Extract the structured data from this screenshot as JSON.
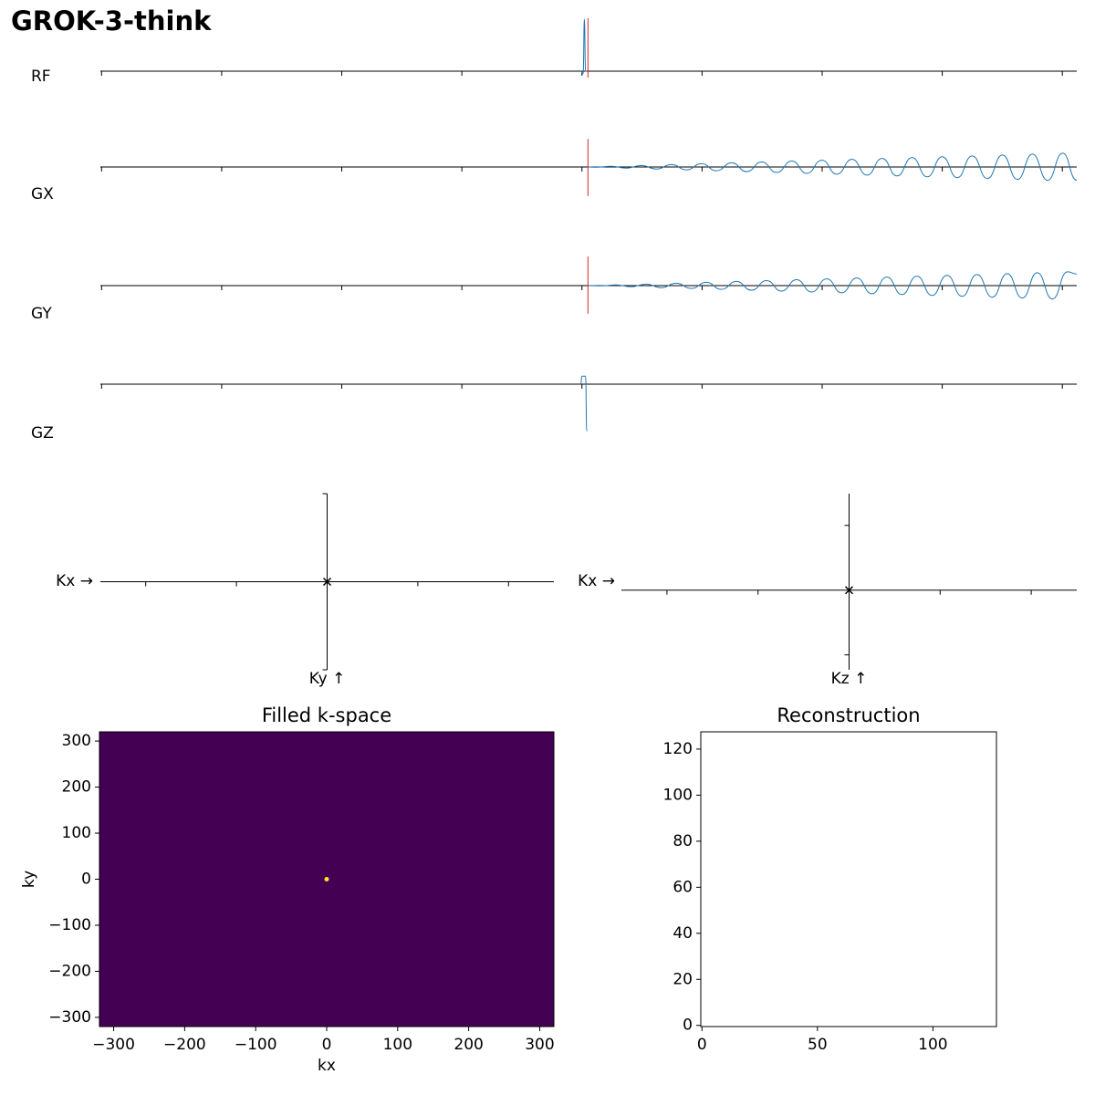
{
  "title": "GROK-3-think",
  "chart_data": [
    {
      "type": "waveform",
      "ylabel": "RF",
      "xlim": [
        -0.01,
        8.12
      ],
      "xticks": [
        0,
        1,
        2,
        3,
        4,
        5,
        6,
        7,
        8
      ],
      "ylim": [
        -1,
        1
      ],
      "series": [
        {
          "color": "#1f77b4",
          "x": [
            3.99,
            4.01,
            4.02,
            4.03,
            4.04
          ],
          "values": [
            0,
            -0.05,
            0.98,
            0,
            0
          ]
        },
        {
          "color": "#d62728",
          "x": [
            4.05,
            4.05
          ],
          "values": [
            1.0,
            -0.12
          ]
        }
      ]
    },
    {
      "type": "waveform",
      "ylabel": "GX",
      "xlim": [
        -0.01,
        8.12
      ],
      "xticks": [
        0,
        1,
        2,
        3,
        4,
        5,
        6,
        7,
        8
      ],
      "ylim": [
        -1,
        1
      ],
      "series": [
        {
          "color": "#1f77b4",
          "x": [
            4.047,
            4.119,
            4.244,
            4.37,
            4.495,
            4.62,
            4.745,
            4.871,
            4.996,
            5.121,
            5.246,
            5.372,
            5.497,
            5.622,
            5.747,
            5.873,
            5.998,
            6.123,
            6.248,
            6.374,
            6.499,
            6.624,
            6.749,
            6.875,
            7.0,
            7.125,
            7.25,
            7.376,
            7.501,
            7.626,
            7.751,
            7.877,
            8.003,
            8.12
          ],
          "values": [
            0,
            -0.005,
            0.013,
            -0.021,
            0.029,
            -0.038,
            0.046,
            -0.054,
            0.062,
            -0.071,
            0.079,
            -0.087,
            0.095,
            -0.103,
            0.112,
            -0.12,
            0.128,
            -0.136,
            0.145,
            -0.153,
            0.161,
            -0.169,
            0.178,
            -0.186,
            0.194,
            -0.202,
            0.21,
            -0.219,
            0.227,
            -0.235,
            0.243,
            -0.252,
            0.26,
            -0.25
          ]
        },
        {
          "color": "#d62728",
          "x": [
            4.05,
            4.05
          ],
          "values": [
            0.53,
            -0.55
          ]
        }
      ]
    },
    {
      "type": "waveform",
      "ylabel": "GY",
      "xlim": [
        -0.01,
        8.12
      ],
      "xticks": [
        0,
        1,
        2,
        3,
        4,
        5,
        6,
        7,
        8
      ],
      "ylim": [
        -1,
        1
      ],
      "series": [
        {
          "color": "#1f77b4",
          "x": [
            4.047,
            4.159,
            4.284,
            4.41,
            4.535,
            4.66,
            4.785,
            4.911,
            5.036,
            5.161,
            5.286,
            5.412,
            5.537,
            5.662,
            5.787,
            5.913,
            6.038,
            6.163,
            6.288,
            6.414,
            6.539,
            6.664,
            6.789,
            6.915,
            7.04,
            7.165,
            7.29,
            7.416,
            7.541,
            7.666,
            7.791,
            7.917,
            8.043,
            8.12
          ],
          "values": [
            0,
            -0.005,
            0.013,
            -0.021,
            0.029,
            -0.038,
            0.046,
            -0.054,
            0.062,
            -0.071,
            0.079,
            -0.087,
            0.095,
            -0.103,
            0.112,
            -0.12,
            0.128,
            -0.136,
            0.145,
            -0.153,
            0.161,
            -0.169,
            0.178,
            -0.186,
            0.194,
            -0.202,
            0.21,
            -0.219,
            0.227,
            -0.235,
            0.243,
            -0.252,
            0.26,
            0.22
          ]
        },
        {
          "color": "#d62728",
          "x": [
            4.05,
            4.05
          ],
          "values": [
            0.55,
            -0.53
          ]
        }
      ]
    },
    {
      "type": "waveform",
      "ylabel": "GZ",
      "xlim": [
        -0.01,
        8.12
      ],
      "xticks": [
        0,
        1,
        2,
        3,
        4,
        5,
        6,
        7,
        8
      ],
      "ylim": [
        -1,
        1
      ],
      "series": [
        {
          "color": "#1f77b4",
          "x": [
            3.99,
            4.0,
            4.03,
            4.04,
            4.045
          ],
          "values": [
            0,
            0.15,
            0.15,
            -0.88,
            -0.88
          ]
        }
      ]
    },
    {
      "type": "trajectory",
      "xlabel": "Kx →",
      "ylabel": "Ky ↑",
      "xlim": [
        -2.5,
        2.5
      ],
      "xticks": [
        -2,
        -1,
        0,
        1,
        2
      ],
      "ylim": [
        -1,
        1
      ],
      "yticks": [
        -1,
        1
      ],
      "x": [
        0
      ],
      "values": [
        0
      ]
    },
    {
      "type": "trajectory",
      "xlabel": "Kx →",
      "ylabel": "Kz ↑",
      "xlim": [
        -2.5,
        2.5
      ],
      "xticks": [
        -2,
        -1,
        0,
        1,
        2
      ],
      "ylim": [
        -1.23,
        1.49
      ],
      "yticks": [
        -1,
        1
      ],
      "x": [
        0
      ],
      "values": [
        0
      ]
    },
    {
      "type": "image",
      "title": "Filled k-space",
      "xlabel": "kx",
      "ylabel": "ky",
      "background": "#440154",
      "color": "#fde725",
      "xlim": [
        -320,
        320
      ],
      "ylim": [
        -320,
        320
      ],
      "xticks": [
        {
          "value": -300,
          "label": "−300"
        },
        {
          "value": -200,
          "label": "−200"
        },
        {
          "value": -100,
          "label": "−100"
        },
        0,
        100,
        200,
        300
      ],
      "yticks": [
        {
          "value": -300,
          "label": "−300"
        },
        {
          "value": -200,
          "label": "−200"
        },
        {
          "value": -100,
          "label": "−100"
        },
        0,
        100,
        200,
        300
      ],
      "x": [
        0
      ],
      "values": [
        0
      ]
    },
    {
      "type": "image",
      "title": "Reconstruction",
      "background": "#ffffff",
      "xlim": [
        -0.5,
        127.5
      ],
      "ylim": [
        -0.5,
        127.5
      ],
      "xticks": [
        0,
        50,
        100
      ],
      "yticks": [
        0,
        20,
        40,
        60,
        80,
        100,
        120
      ],
      "x": [],
      "values": []
    }
  ]
}
